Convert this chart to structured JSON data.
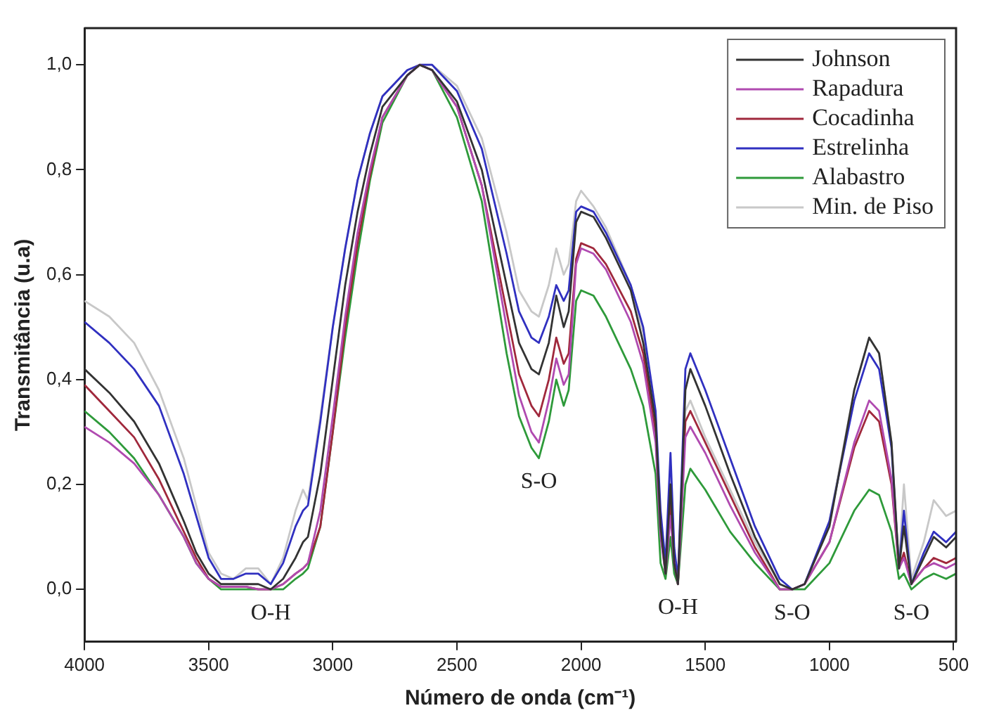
{
  "chart_data": {
    "type": "line",
    "xlabel": "Número de onda (cm⁻¹)",
    "ylabel": "Transmitância (u.a)",
    "x": [
      4000,
      3900,
      3800,
      3700,
      3600,
      3550,
      3500,
      3450,
      3400,
      3350,
      3300,
      3250,
      3200,
      3150,
      3120,
      3100,
      3050,
      3000,
      2950,
      2900,
      2850,
      2800,
      2700,
      2650,
      2600,
      2500,
      2400,
      2300,
      2250,
      2200,
      2170,
      2130,
      2100,
      2070,
      2050,
      2020,
      2000,
      1950,
      1900,
      1800,
      1750,
      1700,
      1680,
      1660,
      1640,
      1625,
      1610,
      1580,
      1560,
      1500,
      1400,
      1300,
      1200,
      1150,
      1100,
      1000,
      900,
      840,
      800,
      750,
      720,
      700,
      670,
      620,
      580,
      530,
      490
    ],
    "series": [
      {
        "name": "Johnson",
        "color": "#333333",
        "values": [
          0.42,
          0.375,
          0.32,
          0.24,
          0.13,
          0.07,
          0.03,
          0.01,
          0.01,
          0.01,
          0.01,
          0,
          0.02,
          0.06,
          0.09,
          0.1,
          0.22,
          0.4,
          0.58,
          0.72,
          0.83,
          0.92,
          0.98,
          1,
          0.99,
          0.93,
          0.8,
          0.58,
          0.47,
          0.42,
          0.41,
          0.47,
          0.56,
          0.5,
          0.53,
          0.7,
          0.72,
          0.71,
          0.67,
          0.57,
          0.47,
          0.32,
          0.12,
          0.03,
          0.2,
          0.05,
          0.01,
          0.38,
          0.42,
          0.35,
          0.22,
          0.1,
          0.01,
          0,
          0.01,
          0.12,
          0.38,
          0.48,
          0.45,
          0.28,
          0.04,
          0.12,
          0.01,
          0.06,
          0.1,
          0.08,
          0.1
        ]
      },
      {
        "name": "Rapadura",
        "color": "#b04ab0",
        "values": [
          0.31,
          0.28,
          0.24,
          0.18,
          0.1,
          0.05,
          0.02,
          0.005,
          0.005,
          0.005,
          0,
          0,
          0.01,
          0.03,
          0.04,
          0.05,
          0.15,
          0.33,
          0.52,
          0.68,
          0.8,
          0.9,
          0.98,
          1,
          0.99,
          0.92,
          0.77,
          0.5,
          0.37,
          0.3,
          0.28,
          0.36,
          0.44,
          0.39,
          0.41,
          0.62,
          0.65,
          0.64,
          0.61,
          0.51,
          0.43,
          0.28,
          0.1,
          0.03,
          0.14,
          0.05,
          0.01,
          0.29,
          0.31,
          0.26,
          0.16,
          0.07,
          0,
          0,
          0.01,
          0.09,
          0.28,
          0.36,
          0.34,
          0.21,
          0.04,
          0.06,
          0.01,
          0.04,
          0.05,
          0.04,
          0.05
        ]
      },
      {
        "name": "Cocadinha",
        "color": "#a0283c",
        "values": [
          0.39,
          0.34,
          0.29,
          0.21,
          0.11,
          0.06,
          0.02,
          0.005,
          0.005,
          0.005,
          0,
          0,
          0.01,
          0.03,
          0.04,
          0.05,
          0.12,
          0.3,
          0.5,
          0.66,
          0.79,
          0.9,
          0.98,
          1,
          0.99,
          0.92,
          0.77,
          0.53,
          0.41,
          0.35,
          0.33,
          0.4,
          0.48,
          0.43,
          0.45,
          0.63,
          0.66,
          0.65,
          0.62,
          0.53,
          0.45,
          0.3,
          0.11,
          0.03,
          0.17,
          0.05,
          0.01,
          0.32,
          0.34,
          0.28,
          0.18,
          0.08,
          0,
          0,
          0.01,
          0.09,
          0.27,
          0.34,
          0.32,
          0.2,
          0.04,
          0.07,
          0.01,
          0.04,
          0.06,
          0.05,
          0.06
        ]
      },
      {
        "name": "Estrelinha",
        "color": "#3030c0",
        "values": [
          0.51,
          0.47,
          0.42,
          0.35,
          0.22,
          0.14,
          0.06,
          0.02,
          0.02,
          0.03,
          0.03,
          0.01,
          0.05,
          0.12,
          0.15,
          0.16,
          0.32,
          0.5,
          0.65,
          0.78,
          0.87,
          0.94,
          0.99,
          1,
          1,
          0.95,
          0.84,
          0.64,
          0.53,
          0.48,
          0.47,
          0.52,
          0.58,
          0.55,
          0.57,
          0.72,
          0.73,
          0.72,
          0.68,
          0.58,
          0.5,
          0.34,
          0.15,
          0.05,
          0.26,
          0.08,
          0.02,
          0.42,
          0.45,
          0.38,
          0.25,
          0.12,
          0.02,
          0,
          0.01,
          0.13,
          0.36,
          0.45,
          0.42,
          0.27,
          0.04,
          0.15,
          0.01,
          0.07,
          0.11,
          0.09,
          0.11
        ]
      },
      {
        "name": "Alabastro",
        "color": "#2e9a3a",
        "values": [
          0.34,
          0.3,
          0.25,
          0.18,
          0.1,
          0.05,
          0.02,
          0,
          0,
          0,
          0,
          0,
          0,
          0.02,
          0.03,
          0.04,
          0.12,
          0.3,
          0.48,
          0.64,
          0.78,
          0.89,
          0.98,
          1,
          0.99,
          0.9,
          0.74,
          0.45,
          0.33,
          0.27,
          0.25,
          0.32,
          0.4,
          0.35,
          0.38,
          0.55,
          0.57,
          0.56,
          0.52,
          0.42,
          0.35,
          0.22,
          0.05,
          0.02,
          0.1,
          0.03,
          0.01,
          0.2,
          0.23,
          0.19,
          0.11,
          0.05,
          0,
          0,
          0,
          0.05,
          0.15,
          0.19,
          0.18,
          0.11,
          0.02,
          0.03,
          0,
          0.02,
          0.03,
          0.02,
          0.03
        ]
      },
      {
        "name": "Min. de Piso",
        "color": "#c8c8c8",
        "values": [
          0.55,
          0.52,
          0.47,
          0.38,
          0.25,
          0.16,
          0.07,
          0.03,
          0.02,
          0.04,
          0.04,
          0.01,
          0.06,
          0.15,
          0.19,
          0.17,
          0.33,
          0.5,
          0.65,
          0.78,
          0.87,
          0.94,
          0.99,
          1,
          1,
          0.96,
          0.86,
          0.68,
          0.57,
          0.53,
          0.52,
          0.58,
          0.65,
          0.6,
          0.62,
          0.74,
          0.76,
          0.73,
          0.69,
          0.58,
          0.49,
          0.33,
          0.13,
          0.04,
          0.22,
          0.06,
          0.02,
          0.34,
          0.36,
          0.29,
          0.19,
          0.09,
          0.01,
          0,
          0.01,
          0.13,
          0.38,
          0.48,
          0.45,
          0.28,
          0.05,
          0.2,
          0.02,
          0.09,
          0.17,
          0.14,
          0.15
        ]
      }
    ],
    "xlim": [
      4000,
      490
    ],
    "xticks": [
      4000,
      3500,
      3000,
      2500,
      2000,
      1500,
      1000,
      500
    ],
    "ylim": [
      -0.1,
      1.07
    ],
    "yticks": [
      {
        "value": 0,
        "label": "0,0"
      },
      {
        "value": 0.2,
        "label": "0,2"
      },
      {
        "value": 0.4,
        "label": "0,4"
      },
      {
        "value": 0.6,
        "label": "0,6"
      },
      {
        "value": 0.8,
        "label": "0,8"
      },
      {
        "value": 1,
        "label": "1,0"
      }
    ],
    "annotations": [
      {
        "text": "O-H",
        "x": 3250,
        "y": 0
      },
      {
        "text": "S-O",
        "x": 2170,
        "y": 0.25
      },
      {
        "text": "O-H",
        "x": 1610,
        "y": 0.01
      },
      {
        "text": "S-O",
        "x": 1150,
        "y": 0
      },
      {
        "text": "S-O",
        "x": 670,
        "y": 0
      }
    ],
    "legend": "top right",
    "grid": false,
    "marker": "none",
    "line_style": "solid"
  }
}
